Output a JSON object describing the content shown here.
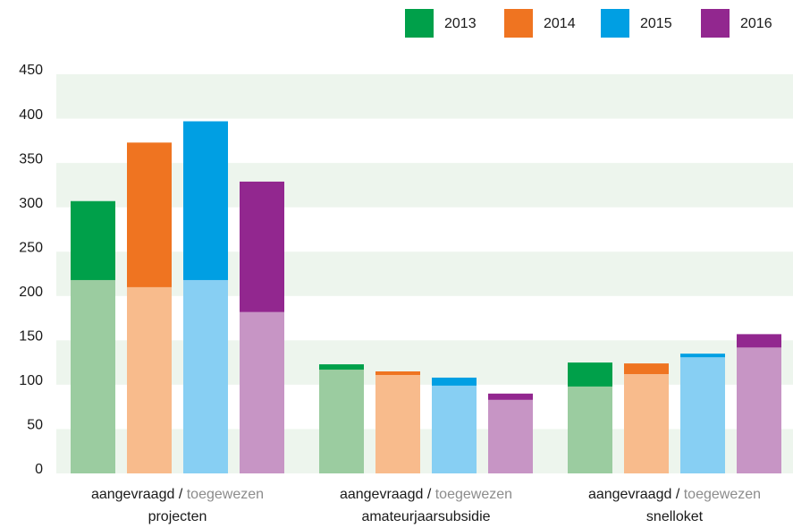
{
  "chart_data": {
    "type": "bar",
    "categories": [
      "projecten",
      "amateurjaarsubsidie",
      "snelloket"
    ],
    "group_label": {
      "requested": "aangevraagd",
      "separator": "/",
      "granted": "toegewezen"
    },
    "series": [
      {
        "name": "2013",
        "color": "#00a04a",
        "light_color": "#9bcca0",
        "values": [
          307,
          123,
          125
        ],
        "granted": [
          218,
          117,
          98
        ]
      },
      {
        "name": "2014",
        "color": "#ef7421",
        "light_color": "#f8bb8c",
        "values": [
          373,
          115,
          124
        ],
        "granted": [
          210,
          111,
          112
        ]
      },
      {
        "name": "2015",
        "color": "#009fe3",
        "light_color": "#87cff3",
        "values": [
          397,
          108,
          135
        ],
        "granted": [
          218,
          99,
          131
        ]
      },
      {
        "name": "2016",
        "color": "#92278f",
        "light_color": "#c795c5",
        "values": [
          329,
          90,
          157
        ],
        "granted": [
          182,
          83,
          142
        ]
      }
    ],
    "ylim": [
      0,
      450
    ],
    "yticks": [
      0,
      50,
      100,
      150,
      200,
      250,
      300,
      350,
      400,
      450
    ],
    "grid": "banded",
    "grid_color": "#edf5ed",
    "legend": "top-right"
  }
}
